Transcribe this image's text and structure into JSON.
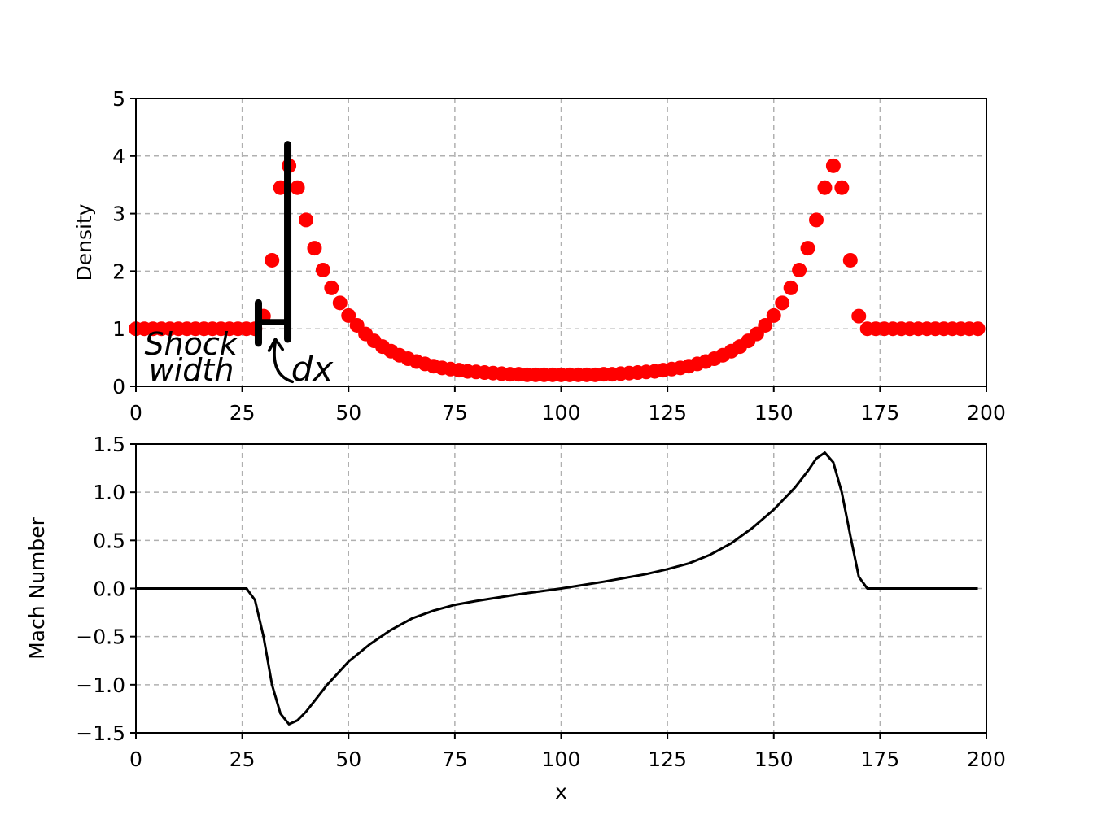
{
  "chart_data": [
    {
      "type": "scatter",
      "ylabel": "Density",
      "xlim": [
        0,
        200
      ],
      "ylim": [
        0,
        5
      ],
      "x_ticks": [
        "0",
        "25",
        "50",
        "75",
        "100",
        "125",
        "150",
        "175",
        "200"
      ],
      "y_ticks": [
        "0",
        "1",
        "2",
        "3",
        "4",
        "5"
      ],
      "grid": true,
      "marker_color": "#ff0000",
      "x": [
        0,
        2,
        4,
        6,
        8,
        10,
        12,
        14,
        16,
        18,
        20,
        22,
        24,
        26,
        28,
        30,
        32,
        34,
        36,
        38,
        40,
        42,
        44,
        46,
        48,
        50,
        52,
        54,
        56,
        58,
        60,
        62,
        64,
        66,
        68,
        70,
        72,
        74,
        76,
        78,
        80,
        82,
        84,
        86,
        88,
        90,
        92,
        94,
        96,
        98,
        100,
        102,
        104,
        106,
        108,
        110,
        112,
        114,
        116,
        118,
        120,
        122,
        124,
        126,
        128,
        130,
        132,
        134,
        136,
        138,
        140,
        142,
        144,
        146,
        148,
        150,
        152,
        154,
        156,
        158,
        160,
        162,
        164,
        166,
        168,
        170,
        172,
        174,
        176,
        178,
        180,
        182,
        184,
        186,
        188,
        190,
        192,
        194,
        196,
        198
      ],
      "y": [
        1,
        1,
        1,
        1,
        1,
        1,
        1,
        1,
        1,
        1,
        1,
        1,
        1,
        1,
        1,
        1.22,
        2.19,
        3.45,
        3.83,
        3.45,
        2.89,
        2.4,
        2.02,
        1.71,
        1.45,
        1.23,
        1.06,
        0.91,
        0.79,
        0.69,
        0.61,
        0.54,
        0.48,
        0.43,
        0.39,
        0.35,
        0.32,
        0.3,
        0.28,
        0.26,
        0.25,
        0.24,
        0.23,
        0.22,
        0.21,
        0.21,
        0.2,
        0.2,
        0.2,
        0.2,
        0.2,
        0.2,
        0.2,
        0.2,
        0.2,
        0.21,
        0.21,
        0.22,
        0.23,
        0.24,
        0.25,
        0.26,
        0.28,
        0.3,
        0.32,
        0.35,
        0.39,
        0.43,
        0.48,
        0.54,
        0.61,
        0.69,
        0.79,
        0.91,
        1.06,
        1.23,
        1.45,
        1.71,
        2.02,
        2.4,
        2.89,
        3.45,
        3.83,
        3.45,
        2.19,
        1.22,
        1,
        1,
        1,
        1,
        1,
        1,
        1,
        1,
        1,
        1,
        1,
        1,
        1,
        1
      ],
      "annotations": [
        {
          "text": "Shock",
          "x": 2,
          "y": 0.55,
          "line": 1
        },
        {
          "text": "width",
          "x": 3,
          "y": 0.1,
          "line": 2
        },
        {
          "text": "dx",
          "x": 36.5,
          "y": 0.1
        }
      ]
    },
    {
      "type": "line",
      "xlabel": "x",
      "ylabel": "Mach Number",
      "xlim": [
        0,
        200
      ],
      "ylim": [
        -1.5,
        1.5
      ],
      "x_ticks": [
        "0",
        "25",
        "50",
        "75",
        "100",
        "125",
        "150",
        "175",
        "200"
      ],
      "y_ticks": [
        "1.5",
        "1.0",
        "0.5",
        "0.0",
        "−0.5",
        "−1.0",
        "−1.5"
      ],
      "grid": true,
      "line_color": "#000000",
      "x": [
        0,
        26,
        28,
        30,
        32,
        34,
        36,
        38,
        40,
        45,
        50,
        55,
        60,
        65,
        70,
        75,
        80,
        90,
        100,
        110,
        120,
        125,
        130,
        135,
        140,
        145,
        150,
        155,
        158,
        160,
        162,
        164,
        166,
        168,
        170,
        172,
        174,
        198
      ],
      "y": [
        0,
        0,
        -0.12,
        -0.5,
        -1.0,
        -1.3,
        -1.41,
        -1.37,
        -1.28,
        -1.0,
        -0.76,
        -0.58,
        -0.43,
        -0.31,
        -0.23,
        -0.17,
        -0.13,
        -0.06,
        0.0,
        0.07,
        0.15,
        0.2,
        0.26,
        0.35,
        0.47,
        0.63,
        0.82,
        1.05,
        1.22,
        1.35,
        1.41,
        1.31,
        1.0,
        0.55,
        0.12,
        0,
        0,
        0
      ]
    }
  ]
}
